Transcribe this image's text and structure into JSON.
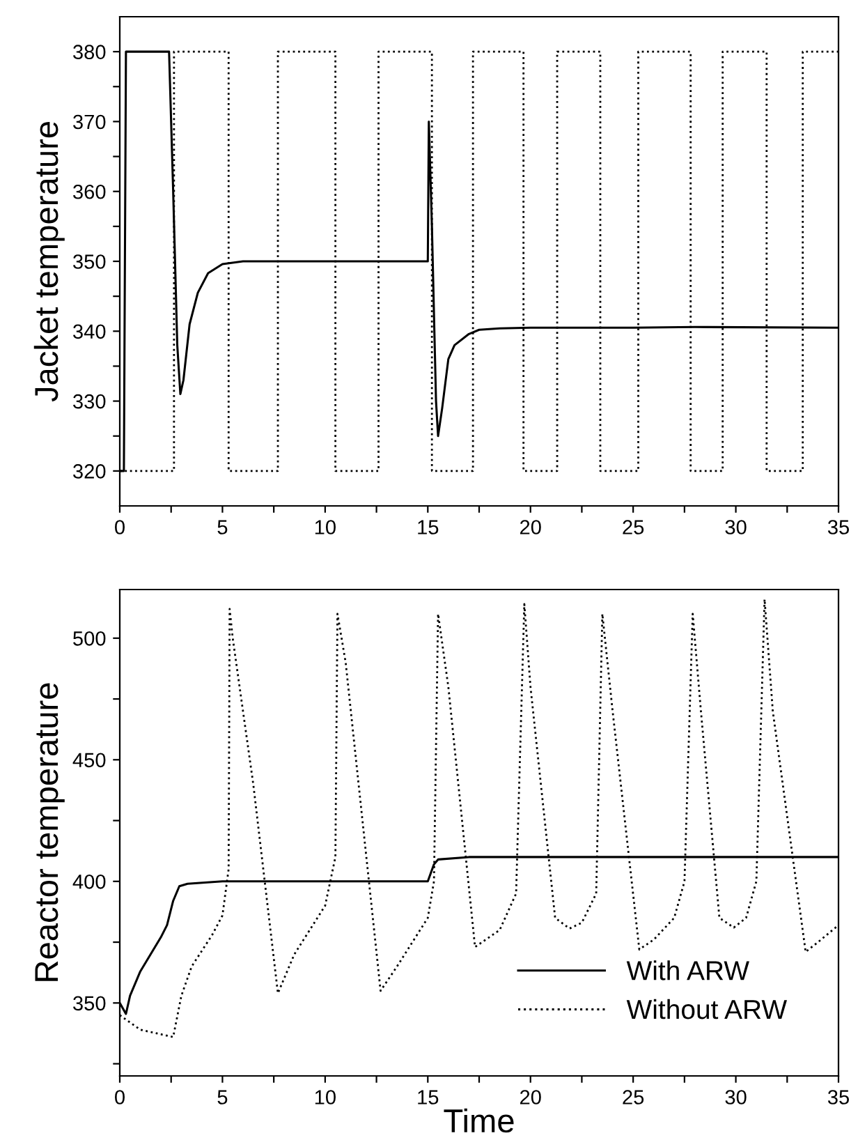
{
  "chart_data": [
    {
      "type": "line",
      "ylabel": "Jacket temperature",
      "xlim": [
        0,
        35
      ],
      "ylim": [
        315,
        385
      ],
      "xticks": [
        0,
        {
          "value": 2.5,
          "label": null
        },
        5,
        {
          "value": 7.5,
          "label": null
        },
        10,
        {
          "value": 12.5,
          "label": null
        },
        15,
        {
          "value": 17.5,
          "label": null
        },
        20,
        {
          "value": 22.5,
          "label": null
        },
        25,
        {
          "value": 27.5,
          "label": null
        },
        30,
        {
          "value": 32.5,
          "label": null
        },
        35
      ],
      "yticks": [
        320,
        {
          "value": 325,
          "label": null
        },
        330,
        {
          "value": 335,
          "label": null
        },
        340,
        {
          "value": 345,
          "label": null
        },
        350,
        {
          "value": 355,
          "label": null
        },
        360,
        {
          "value": 365,
          "label": null
        },
        370,
        {
          "value": 375,
          "label": null
        },
        380
      ],
      "grid": false,
      "legend": false,
      "series": [
        {
          "color": "#000000",
          "line_style": "solid",
          "x": [
            0,
            0.2,
            0.3,
            2.4,
            2.6,
            2.8,
            2.95,
            3.1,
            3.4,
            3.8,
            4.3,
            5.0,
            6.0,
            7.0,
            15.0,
            15.05,
            15.2,
            15.4,
            15.5,
            15.7,
            16.0,
            16.3,
            17.0,
            17.5,
            18.5,
            20,
            25,
            28,
            35
          ],
          "values": [
            320,
            320,
            380,
            380,
            360,
            338,
            331,
            333,
            341,
            345.5,
            348.3,
            349.6,
            350,
            350,
            350,
            370,
            355,
            330,
            325,
            329,
            336,
            338,
            339.6,
            340.2,
            340.4,
            340.5,
            340.5,
            340.6,
            340.5
          ]
        },
        {
          "color": "#000000",
          "line_style": "dotted",
          "x": [
            0,
            2.64,
            2.64,
            5.3,
            5.3,
            7.7,
            7.7,
            10.5,
            10.5,
            12.6,
            12.6,
            15.2,
            15.2,
            17.2,
            17.2,
            19.66,
            19.66,
            21.3,
            21.3,
            23.4,
            23.4,
            25.25,
            25.25,
            27.8,
            27.8,
            29.36,
            29.36,
            31.5,
            31.5,
            33.26,
            33.26,
            35
          ],
          "values": [
            320,
            320,
            380,
            380,
            320,
            320,
            380,
            380,
            320,
            320,
            380,
            380,
            320,
            320,
            380,
            380,
            320,
            320,
            380,
            380,
            320,
            320,
            380,
            380,
            320,
            320,
            380,
            380,
            320,
            320,
            380,
            380
          ]
        }
      ]
    },
    {
      "type": "line",
      "xlabel": "Time",
      "ylabel": "Reactor temperature",
      "xlim": [
        0,
        35
      ],
      "ylim": [
        320,
        520
      ],
      "xticks": [
        0,
        {
          "value": 2.5,
          "label": null
        },
        5,
        {
          "value": 7.5,
          "label": null
        },
        10,
        {
          "value": 12.5,
          "label": null
        },
        15,
        {
          "value": 17.5,
          "label": null
        },
        20,
        {
          "value": 22.5,
          "label": null
        },
        25,
        {
          "value": 27.5,
          "label": null
        },
        30,
        {
          "value": 32.5,
          "label": null
        },
        35
      ],
      "yticks": [
        {
          "value": 325,
          "label": null
        },
        350,
        {
          "value": 375,
          "label": null
        },
        400,
        {
          "value": 425,
          "label": null
        },
        450,
        {
          "value": 475,
          "label": null
        },
        500
      ],
      "grid": false,
      "legend": "bottom right",
      "series": [
        {
          "name": "With ARW",
          "color": "#000000",
          "line_style": "solid",
          "x": [
            0,
            0.3,
            0.5,
            1.0,
            1.5,
            2.0,
            2.3,
            2.6,
            2.9,
            3.3,
            5,
            15,
            15.3,
            15.5,
            17,
            35
          ],
          "values": [
            350,
            345.5,
            353,
            363,
            370,
            377,
            382,
            392,
            398,
            399,
            400,
            400,
            407,
            409,
            410,
            410
          ]
        },
        {
          "name": "Without ARW",
          "color": "#000000",
          "line_style": "dotted",
          "x": [
            0,
            1,
            2.6,
            3.0,
            3.5,
            4.5,
            5.0,
            5.3,
            5.35,
            5.5,
            6.5,
            7.7,
            8.5,
            10,
            10.5,
            10.6,
            11,
            12.7,
            13.5,
            15,
            15.3,
            15.5,
            16,
            17.3,
            18.5,
            19.3,
            19.7,
            20,
            21.2,
            21.9,
            22.5,
            23.2,
            23.5,
            24,
            25.3,
            26,
            27,
            27.5,
            27.9,
            28.3,
            29.2,
            29.9,
            30.5,
            31,
            31.4,
            31.8,
            33.4,
            34,
            35
          ],
          "values": [
            345,
            339,
            336,
            353,
            365,
            378,
            386,
            405,
            512,
            500,
            440,
            354,
            370,
            390,
            410,
            510,
            490,
            355,
            365,
            385,
            400,
            510,
            480,
            373,
            380,
            395,
            514,
            480,
            385,
            380.6,
            383,
            395,
            510,
            470,
            372,
            376,
            385,
            400,
            510,
            470,
            385,
            381,
            385,
            400,
            516,
            470,
            371,
            375,
            382
          ]
        }
      ]
    }
  ]
}
